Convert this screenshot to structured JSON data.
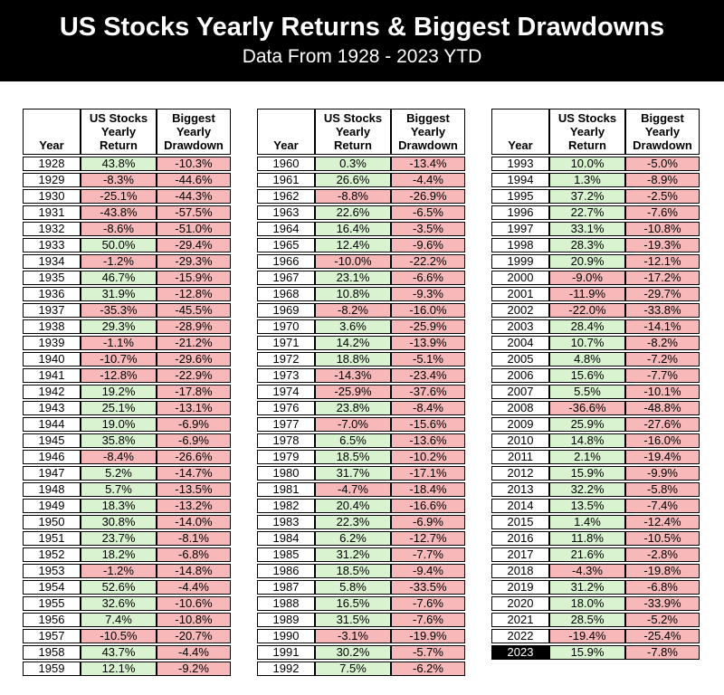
{
  "banner": {
    "title": "US Stocks Yearly Returns & Biggest Drawdowns",
    "subtitle": "Data From 1928 - 2023 YTD"
  },
  "colors": {
    "banner_bg": "#000000",
    "banner_text": "#ffffff",
    "positive_bg": "#d9f2d0",
    "negative_bg": "#f6b8b9",
    "highlight_bg": "#000000",
    "highlight_text": "#ffffff",
    "grid": "#000000"
  },
  "highlight_year": "2023",
  "chart_data": {
    "type": "table",
    "title": "US Stocks Yearly Returns & Biggest Drawdowns",
    "subtitle": "Data From 1928 - 2023 YTD",
    "columns": [
      "Year",
      "US Stocks\nYearly\nReturn",
      "Biggest\nYearly\nDrawdown"
    ],
    "tables": [
      {
        "rows": [
          [
            "1928",
            "43.8%",
            "-10.3%"
          ],
          [
            "1929",
            "-8.3%",
            "-44.6%"
          ],
          [
            "1930",
            "-25.1%",
            "-44.3%"
          ],
          [
            "1931",
            "-43.8%",
            "-57.5%"
          ],
          [
            "1932",
            "-8.6%",
            "-51.0%"
          ],
          [
            "1933",
            "50.0%",
            "-29.4%"
          ],
          [
            "1934",
            "-1.2%",
            "-29.3%"
          ],
          [
            "1935",
            "46.7%",
            "-15.9%"
          ],
          [
            "1936",
            "31.9%",
            "-12.8%"
          ],
          [
            "1937",
            "-35.3%",
            "-45.5%"
          ],
          [
            "1938",
            "29.3%",
            "-28.9%"
          ],
          [
            "1939",
            "-1.1%",
            "-21.2%"
          ],
          [
            "1940",
            "-10.7%",
            "-29.6%"
          ],
          [
            "1941",
            "-12.8%",
            "-22.9%"
          ],
          [
            "1942",
            "19.2%",
            "-17.8%"
          ],
          [
            "1943",
            "25.1%",
            "-13.1%"
          ],
          [
            "1944",
            "19.0%",
            "-6.9%"
          ],
          [
            "1945",
            "35.8%",
            "-6.9%"
          ],
          [
            "1946",
            "-8.4%",
            "-26.6%"
          ],
          [
            "1947",
            "5.2%",
            "-14.7%"
          ],
          [
            "1948",
            "5.7%",
            "-13.5%"
          ],
          [
            "1949",
            "18.3%",
            "-13.2%"
          ],
          [
            "1950",
            "30.8%",
            "-14.0%"
          ],
          [
            "1951",
            "23.7%",
            "-8.1%"
          ],
          [
            "1952",
            "18.2%",
            "-6.8%"
          ],
          [
            "1953",
            "-1.2%",
            "-14.8%"
          ],
          [
            "1954",
            "52.6%",
            "-4.4%"
          ],
          [
            "1955",
            "32.6%",
            "-10.6%"
          ],
          [
            "1956",
            "7.4%",
            "-10.8%"
          ],
          [
            "1957",
            "-10.5%",
            "-20.7%"
          ],
          [
            "1958",
            "43.7%",
            "-4.4%"
          ],
          [
            "1959",
            "12.1%",
            "-9.2%"
          ]
        ]
      },
      {
        "rows": [
          [
            "1960",
            "0.3%",
            "-13.4%"
          ],
          [
            "1961",
            "26.6%",
            "-4.4%"
          ],
          [
            "1962",
            "-8.8%",
            "-26.9%"
          ],
          [
            "1963",
            "22.6%",
            "-6.5%"
          ],
          [
            "1964",
            "16.4%",
            "-3.5%"
          ],
          [
            "1965",
            "12.4%",
            "-9.6%"
          ],
          [
            "1966",
            "-10.0%",
            "-22.2%"
          ],
          [
            "1967",
            "23.1%",
            "-6.6%"
          ],
          [
            "1968",
            "10.8%",
            "-9.3%"
          ],
          [
            "1969",
            "-8.2%",
            "-16.0%"
          ],
          [
            "1970",
            "3.6%",
            "-25.9%"
          ],
          [
            "1971",
            "14.2%",
            "-13.9%"
          ],
          [
            "1972",
            "18.8%",
            "-5.1%"
          ],
          [
            "1973",
            "-14.3%",
            "-23.4%"
          ],
          [
            "1974",
            "-25.9%",
            "-37.6%"
          ],
          [
            "1976",
            "23.8%",
            "-8.4%"
          ],
          [
            "1977",
            "-7.0%",
            "-15.6%"
          ],
          [
            "1978",
            "6.5%",
            "-13.6%"
          ],
          [
            "1979",
            "18.5%",
            "-10.2%"
          ],
          [
            "1980",
            "31.7%",
            "-17.1%"
          ],
          [
            "1981",
            "-4.7%",
            "-18.4%"
          ],
          [
            "1982",
            "20.4%",
            "-16.6%"
          ],
          [
            "1983",
            "22.3%",
            "-6.9%"
          ],
          [
            "1984",
            "6.2%",
            "-12.7%"
          ],
          [
            "1985",
            "31.2%",
            "-7.7%"
          ],
          [
            "1986",
            "18.5%",
            "-9.4%"
          ],
          [
            "1987",
            "5.8%",
            "-33.5%"
          ],
          [
            "1988",
            "16.5%",
            "-7.6%"
          ],
          [
            "1989",
            "31.5%",
            "-7.6%"
          ],
          [
            "1990",
            "-3.1%",
            "-19.9%"
          ],
          [
            "1991",
            "30.2%",
            "-5.7%"
          ],
          [
            "1992",
            "7.5%",
            "-6.2%"
          ]
        ]
      },
      {
        "rows": [
          [
            "1993",
            "10.0%",
            "-5.0%"
          ],
          [
            "1994",
            "1.3%",
            "-8.9%"
          ],
          [
            "1995",
            "37.2%",
            "-2.5%"
          ],
          [
            "1996",
            "22.7%",
            "-7.6%"
          ],
          [
            "1997",
            "33.1%",
            "-10.8%"
          ],
          [
            "1998",
            "28.3%",
            "-19.3%"
          ],
          [
            "1999",
            "20.9%",
            "-12.1%"
          ],
          [
            "2000",
            "-9.0%",
            "-17.2%"
          ],
          [
            "2001",
            "-11.9%",
            "-29.7%"
          ],
          [
            "2002",
            "-22.0%",
            "-33.8%"
          ],
          [
            "2003",
            "28.4%",
            "-14.1%"
          ],
          [
            "2004",
            "10.7%",
            "-8.2%"
          ],
          [
            "2005",
            "4.8%",
            "-7.2%"
          ],
          [
            "2006",
            "15.6%",
            "-7.7%"
          ],
          [
            "2007",
            "5.5%",
            "-10.1%"
          ],
          [
            "2008",
            "-36.6%",
            "-48.8%"
          ],
          [
            "2009",
            "25.9%",
            "-27.6%"
          ],
          [
            "2010",
            "14.8%",
            "-16.0%"
          ],
          [
            "2011",
            "2.1%",
            "-19.4%"
          ],
          [
            "2012",
            "15.9%",
            "-9.9%"
          ],
          [
            "2013",
            "32.2%",
            "-5.8%"
          ],
          [
            "2014",
            "13.5%",
            "-7.4%"
          ],
          [
            "2015",
            "1.4%",
            "-12.4%"
          ],
          [
            "2016",
            "11.8%",
            "-10.5%"
          ],
          [
            "2017",
            "21.6%",
            "-2.8%"
          ],
          [
            "2018",
            "-4.3%",
            "-19.8%"
          ],
          [
            "2019",
            "31.2%",
            "-6.8%"
          ],
          [
            "2020",
            "18.0%",
            "-33.9%"
          ],
          [
            "2021",
            "28.5%",
            "-5.2%"
          ],
          [
            "2022",
            "-19.4%",
            "-25.4%"
          ],
          [
            "2023",
            "15.9%",
            "-7.8%"
          ]
        ]
      }
    ]
  }
}
